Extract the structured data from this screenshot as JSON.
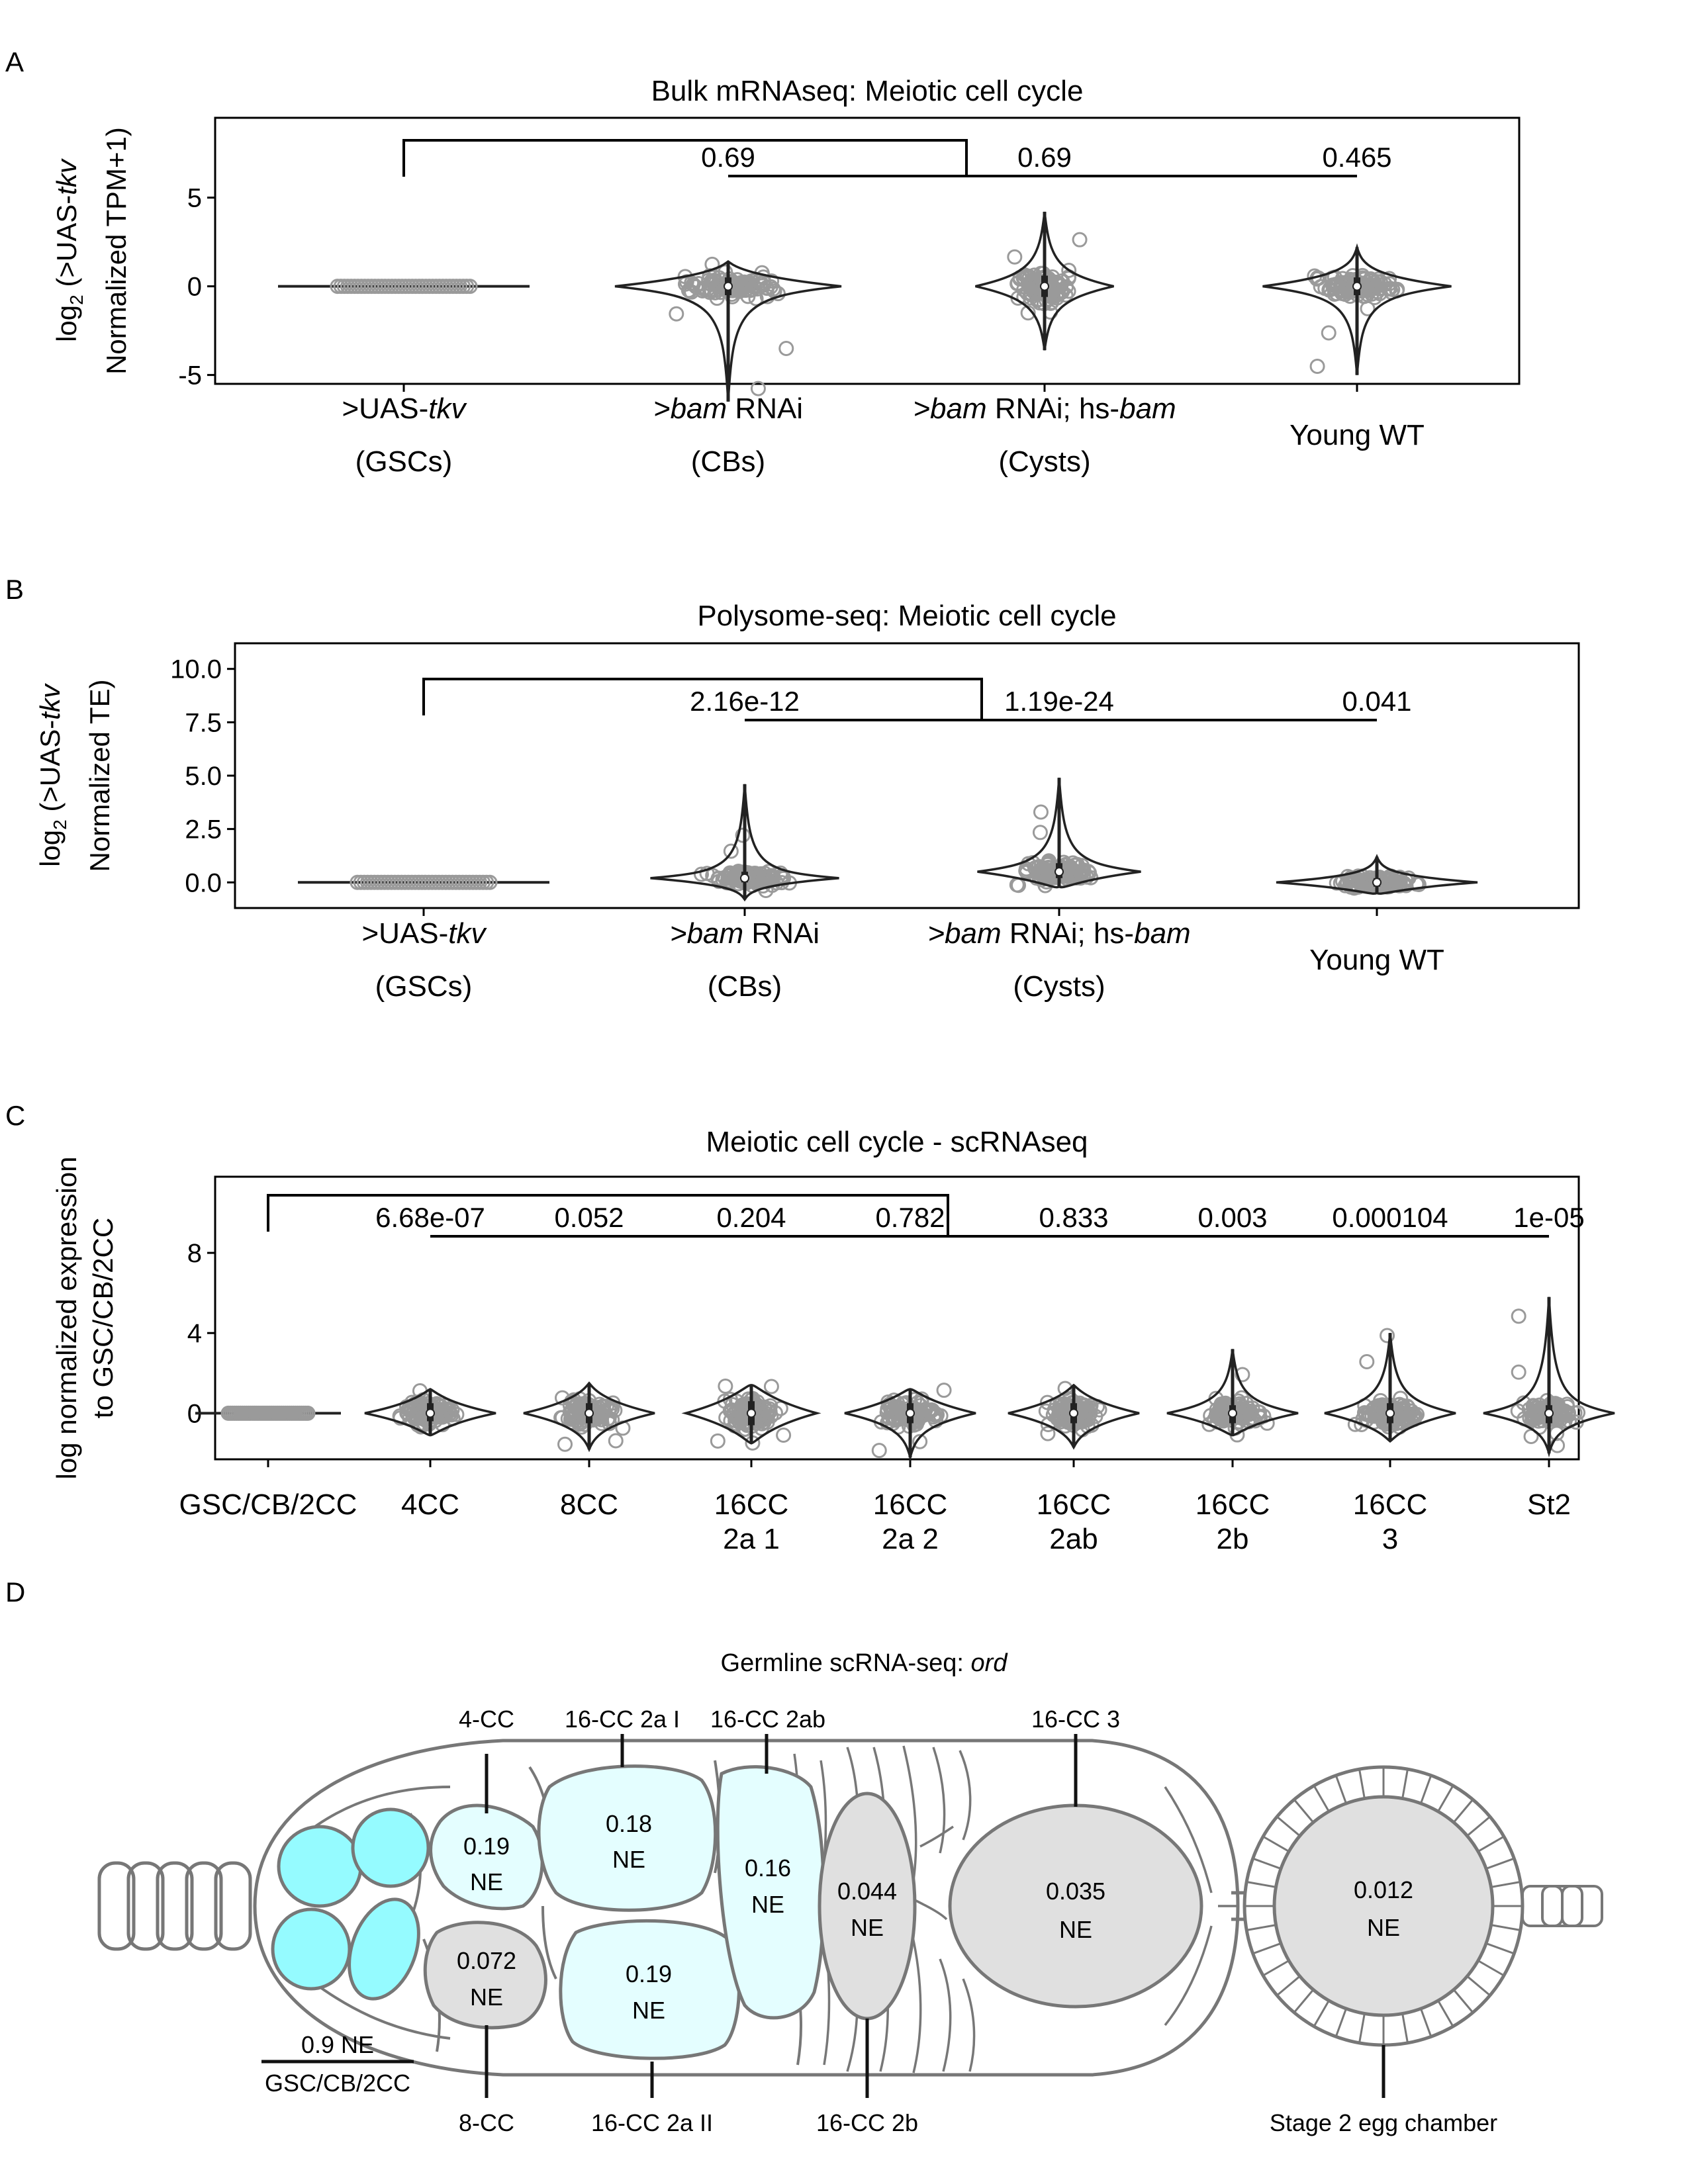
{
  "panels": {
    "A": "A",
    "B": "B",
    "C": "C",
    "D": "D"
  },
  "chart_data": [
    {
      "type": "violin",
      "title": "Bulk mRNAseq: Meiotic cell cycle",
      "ylabel_line1": "log2 (>UAS-tkv",
      "ylabel_line2": "Normalized TPM+1)",
      "ylim": [
        -5.5,
        9.5
      ],
      "yticks": [
        5,
        0,
        -5
      ],
      "ytick_labels": [
        "5",
        "0",
        "-5"
      ],
      "categories": [
        {
          "line1_roman": ">UAS-",
          "line1_italic": "tkv",
          "line2": "(GSCs)"
        },
        {
          "line1_italic": ">bam",
          "line1_roman": " RNAi",
          "line2": "(CBs)"
        },
        {
          "line1_italic": ">bam",
          "line1_roman": " RNAi; hs-",
          "line1_italic2": "bam",
          "line2": "(Cysts)"
        },
        {
          "line1_roman": "Young WT",
          "line2": ""
        }
      ],
      "violins": [
        {
          "median": 0,
          "q1": 0,
          "q3": 0,
          "min": 0,
          "max": 0,
          "spread": -5.5,
          "width": 1.0
        },
        {
          "median": 0,
          "q1": -0.5,
          "q3": 0.5,
          "min": -6.5,
          "max": 1.4,
          "width": 0.9
        },
        {
          "median": 0,
          "q1": -0.6,
          "q3": 0.6,
          "min": -3.6,
          "max": 4.2,
          "width": 0.55
        },
        {
          "median": 0,
          "q1": -0.5,
          "q3": 0.5,
          "min": -5.0,
          "max": 2.2,
          "width": 0.75
        }
      ],
      "pvalues": [
        "0.69",
        "0.69",
        "0.465"
      ]
    },
    {
      "type": "violin",
      "title": "Polysome-seq: Meiotic cell cycle",
      "ylabel_line1": "log2 (>UAS-tkv",
      "ylabel_line2": "Normalized TE)",
      "ylim": [
        -1.2,
        11.2
      ],
      "yticks": [
        10.0,
        7.5,
        5.0,
        2.5,
        0.0
      ],
      "ytick_labels": [
        "10.0",
        "7.5",
        "5.0",
        "2.5",
        "0.0"
      ],
      "categories": [
        {
          "line1_roman": ">UAS-",
          "line1_italic": "tkv",
          "line2": "(GSCs)"
        },
        {
          "line1_italic": ">bam",
          "line1_roman": " RNAi",
          "line2": "(CBs)"
        },
        {
          "line1_italic": ">bam",
          "line1_roman": " RNAi; hs-",
          "line1_italic2": "bam",
          "line2": "(Cysts)"
        },
        {
          "line1_roman": "Young WT",
          "line2": ""
        }
      ],
      "violins": [
        {
          "median": 0,
          "q1": 0,
          "q3": 0,
          "min": 0,
          "max": 0,
          "width": 0.5
        },
        {
          "median": 0.2,
          "q1": 0.0,
          "q3": 0.5,
          "min": -0.8,
          "max": 4.6,
          "width": 0.75
        },
        {
          "median": 0.5,
          "q1": 0.2,
          "q3": 0.9,
          "min": -0.2,
          "max": 4.9,
          "width": 0.65
        },
        {
          "median": 0.0,
          "q1": -0.2,
          "q3": 0.2,
          "min": -0.5,
          "max": 1.2,
          "width": 0.8
        }
      ],
      "pvalues": [
        "2.16e-12",
        "1.19e-24",
        "0.041"
      ]
    },
    {
      "type": "violin",
      "title": "Meiotic cell cycle - scRNAseq",
      "ylabel_line1": "log normalized expression",
      "ylabel_line2": "to GSC/CB/2CC",
      "ylim": [
        -2.3,
        11.8
      ],
      "yticks": [
        8,
        4,
        0
      ],
      "ytick_labels": [
        "8",
        "4",
        "0"
      ],
      "categories": [
        {
          "line1": "GSC/CB/2CC",
          "line2": ""
        },
        {
          "line1": "4CC",
          "line2": ""
        },
        {
          "line1": "8CC",
          "line2": ""
        },
        {
          "line1": "16CC",
          "line2": "2a 1"
        },
        {
          "line1": "16CC",
          "line2": "2a 2"
        },
        {
          "line1": "16CC",
          "line2": "2ab"
        },
        {
          "line1": "16CC",
          "line2": "2b"
        },
        {
          "line1": "16CC",
          "line2": "3"
        },
        {
          "line1": "St2",
          "line2": ""
        }
      ],
      "violins": [
        {
          "median": 0,
          "q1": 0,
          "q3": 0,
          "min": 0,
          "max": 0
        },
        {
          "median": 0,
          "q1": -0.4,
          "q3": 0.5,
          "min": -1.1,
          "max": 1.2
        },
        {
          "median": 0,
          "q1": -0.5,
          "q3": 0.5,
          "min": -1.8,
          "max": 1.5
        },
        {
          "median": 0,
          "q1": -0.6,
          "q3": 0.6,
          "min": -1.5,
          "max": 1.4
        },
        {
          "median": 0,
          "q1": -0.5,
          "q3": 0.5,
          "min": -2.2,
          "max": 1.2
        },
        {
          "median": 0,
          "q1": -0.5,
          "q3": 0.5,
          "min": -1.7,
          "max": 1.4
        },
        {
          "median": 0,
          "q1": -0.5,
          "q3": 0.4,
          "min": -1.1,
          "max": 3.2
        },
        {
          "median": 0,
          "q1": -0.5,
          "q3": 0.5,
          "min": -1.4,
          "max": 4.0
        },
        {
          "median": 0,
          "q1": -0.5,
          "q3": 0.4,
          "min": -2.0,
          "max": 5.8
        }
      ],
      "pvalues": [
        "6.68e-07",
        "0.052",
        "0.204",
        "0.782",
        "0.833",
        "0.003",
        "0.000104",
        "1e-05"
      ]
    }
  ],
  "diagram": {
    "title_roman": "Germline scRNA-seq: ",
    "title_italic": "ord",
    "labels_top": [
      "4-CC",
      "16-CC 2a I",
      "16-CC 2ab",
      "16-CC 3"
    ],
    "labels_bottom": [
      "8-CC",
      "16-CC 2a II",
      "16-CC 2b",
      "Stage 2 egg chamber"
    ],
    "cells": [
      {
        "value": "0.19",
        "unit": "NE"
      },
      {
        "value": "0.18",
        "unit": "NE"
      },
      {
        "value": "0.16",
        "unit": "NE"
      },
      {
        "value": "0.044",
        "unit": "NE"
      },
      {
        "value": "0.035",
        "unit": "NE"
      },
      {
        "value": "0.012",
        "unit": "NE"
      },
      {
        "value": "0.072",
        "unit": "NE"
      },
      {
        "value": "0.19",
        "unit": "NE"
      }
    ],
    "legend_top": "0.9 NE",
    "legend_bottom": "GSC/CB/2CC",
    "colors": {
      "cyan": "#95fbff",
      "light_cyan": "#e4feff",
      "gray": "#e0e0e0",
      "outline": "#777777"
    }
  }
}
